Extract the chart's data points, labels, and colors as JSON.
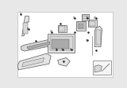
{
  "bg_color": "#e8e8e8",
  "inner_bg": "#ffffff",
  "border_color": "#cccccc",
  "fig_width": 1.6,
  "fig_height": 1.12,
  "dpi": 100
}
